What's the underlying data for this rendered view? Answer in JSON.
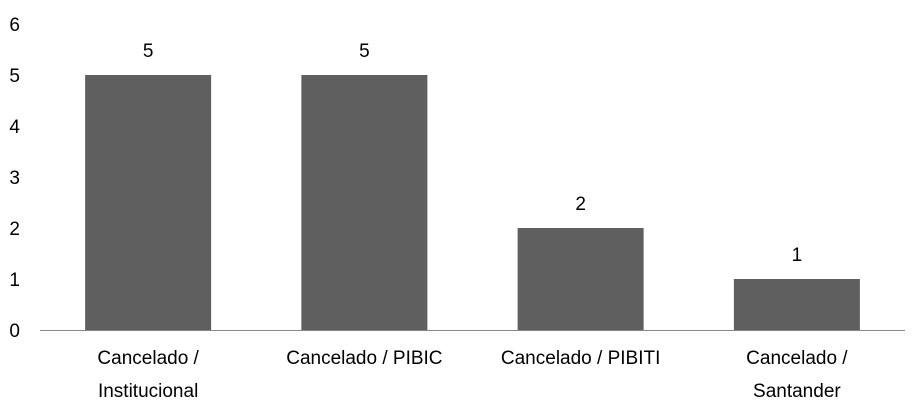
{
  "chart_data": {
    "type": "bar",
    "categories": [
      [
        "Cancelado /",
        "Institucional"
      ],
      [
        "Cancelado / PIBIC"
      ],
      [
        "Cancelado / PIBITI"
      ],
      [
        "Cancelado /",
        "Santander"
      ]
    ],
    "values": [
      5,
      5,
      2,
      1
    ],
    "data_labels": [
      "5",
      "5",
      "2",
      "1"
    ],
    "ylim": [
      0,
      6
    ],
    "yticks": [
      "0",
      "1",
      "2",
      "3",
      "4",
      "5",
      "6"
    ],
    "grid": false,
    "legend": "none",
    "colors": {
      "bar": "#5f5f5f",
      "axis": "#888888",
      "text": "#000000"
    }
  }
}
